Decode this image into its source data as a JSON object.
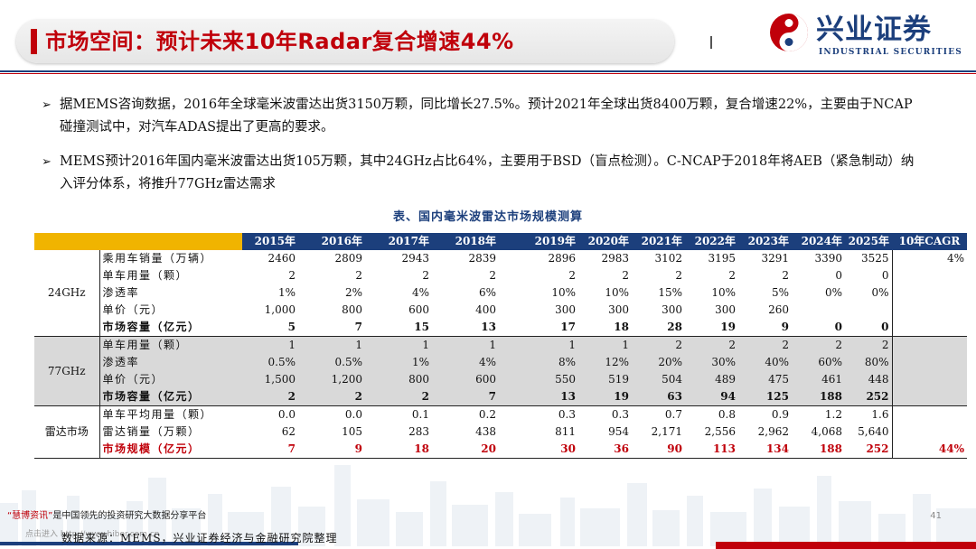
{
  "header": {
    "title": "市场空间：预计未来10年Radar复合增速44%",
    "logo_cn": "兴业证券",
    "logo_en": "INDUSTRIAL SECURITIES"
  },
  "bullets": [
    "据MEMS咨询数据，2016年全球毫米波雷达出货3150万颗，同比增长27.5%。预计2021年全球出货8400万颗，复合增速22%，主要由于NCAP碰撞测试中，对汽车ADAS提出了更高的要求。",
    "MEMS预计2016年国内毫米波雷达出货105万颗，其中24GHz占比64%，主要用于BSD（盲点检测）。C-NCAP于2018年将AEB（紧急制动）纳入评分体系，将推升77GHz雷达需求"
  ],
  "table": {
    "caption": "表、国内毫米波雷达市场规模测算",
    "years": [
      "2015年",
      "2016年",
      "2017年",
      "2018年",
      "2019年",
      "2020年",
      "2021年",
      "2022年",
      "2023年",
      "2024年",
      "2025年"
    ],
    "cagr_header": "10年CAGR",
    "groups": [
      {
        "name": "24GHz",
        "rows": [
          {
            "label": "乘用车销量（万辆）",
            "values": [
              "2460",
              "2809",
              "2943",
              "2839",
              "2896",
              "2983",
              "3102",
              "3195",
              "3291",
              "3390",
              "3525"
            ],
            "cagr": "4%"
          },
          {
            "label": "单车用量（颗）",
            "values": [
              "2",
              "2",
              "2",
              "2",
              "2",
              "2",
              "2",
              "2",
              "2",
              "0",
              "0"
            ],
            "cagr": ""
          },
          {
            "label": "渗透率",
            "values": [
              "1%",
              "2%",
              "4%",
              "6%",
              "10%",
              "10%",
              "15%",
              "10%",
              "5%",
              "0%",
              "0%"
            ],
            "cagr": ""
          },
          {
            "label": "单价（元）",
            "values": [
              "1,000",
              "800",
              "600",
              "400",
              "300",
              "300",
              "300",
              "300",
              "260",
              "",
              ""
            ],
            "cagr": ""
          },
          {
            "label": "市场容量（亿元）",
            "values": [
              "5",
              "7",
              "15",
              "13",
              "17",
              "18",
              "28",
              "19",
              "9",
              "0",
              "0"
            ],
            "cagr": ""
          }
        ]
      },
      {
        "name": "77GHz",
        "rows": [
          {
            "label": "单车用量（颗）",
            "values": [
              "1",
              "1",
              "1",
              "1",
              "1",
              "1",
              "2",
              "2",
              "2",
              "2",
              "2"
            ],
            "cagr": ""
          },
          {
            "label": "渗透率",
            "values": [
              "0.5%",
              "0.5%",
              "1%",
              "4%",
              "8%",
              "12%",
              "20%",
              "30%",
              "40%",
              "60%",
              "80%"
            ],
            "cagr": ""
          },
          {
            "label": "单价（元）",
            "values": [
              "1,500",
              "1,200",
              "800",
              "600",
              "550",
              "519",
              "504",
              "489",
              "475",
              "461",
              "448"
            ],
            "cagr": ""
          },
          {
            "label": "市场容量（亿元）",
            "values": [
              "2",
              "2",
              "2",
              "7",
              "13",
              "19",
              "63",
              "94",
              "125",
              "188",
              "252"
            ],
            "cagr": ""
          }
        ]
      },
      {
        "name": "雷达市场",
        "rows": [
          {
            "label": "单车平均用量（颗）",
            "values": [
              "0.0",
              "0.0",
              "0.1",
              "0.2",
              "0.3",
              "0.3",
              "0.7",
              "0.8",
              "0.9",
              "1.2",
              "1.6"
            ],
            "cagr": ""
          },
          {
            "label": "雷达销量（万颗）",
            "values": [
              "62",
              "105",
              "283",
              "438",
              "811",
              "954",
              "2,171",
              "2,556",
              "2,962",
              "4,068",
              "5,640"
            ],
            "cagr": ""
          },
          {
            "label": "市场规模（亿元）",
            "values": [
              "7",
              "9",
              "18",
              "20",
              "30",
              "36",
              "90",
              "113",
              "134",
              "188",
              "252"
            ],
            "cagr": "44%"
          }
        ]
      }
    ]
  },
  "footer": {
    "brand_quote": "“慧博资讯”",
    "brand_text": "是中国领先的投资研究大数据分享平台",
    "link": "点击进入 http://www.hibor.com.cn",
    "page": "41",
    "source": "数据来源：MEMS，兴业证券经济与金融研究院整理"
  },
  "colors": {
    "brand_blue": "#1c3f7c",
    "brand_red": "#c0000a",
    "header_gold": "#f0b400",
    "band_gray": "#d9d9d9"
  }
}
